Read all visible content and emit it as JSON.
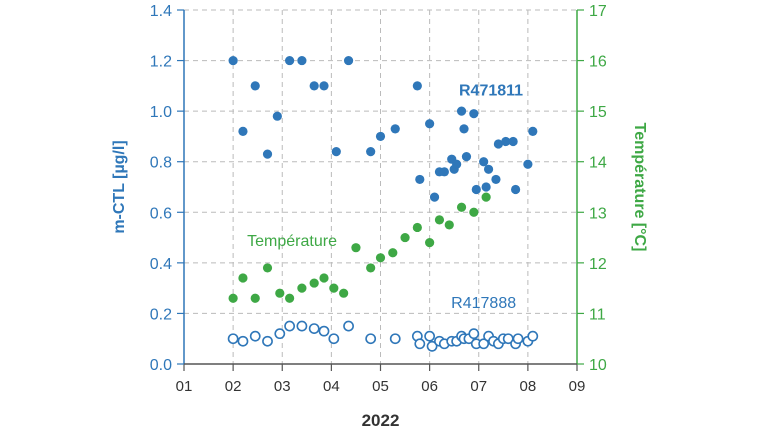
{
  "chart_data": {
    "type": "scatter",
    "xlabel": "2022",
    "ylabel_left": "m-CTL [µg/l]",
    "ylabel_right": "Température [°C]",
    "x_ticks": [
      "01",
      "02",
      "03",
      "04",
      "05",
      "06",
      "07",
      "08",
      "09"
    ],
    "x_range": [
      1,
      9
    ],
    "ylim_left": [
      0.0,
      1.4
    ],
    "ylim_right": [
      10,
      17
    ],
    "y_ticks_left": [
      "0.0",
      "0.2",
      "0.4",
      "0.6",
      "0.8",
      "1.0",
      "1.2",
      "1.4"
    ],
    "y_ticks_right": [
      "10",
      "11",
      "12",
      "13",
      "14",
      "15",
      "16",
      "17"
    ],
    "grid": true,
    "colors": {
      "blue": "#2f77b9",
      "green": "#3ea845",
      "grid": "#bbbbbb",
      "axis": "#555555"
    },
    "series": [
      {
        "name": "R471811",
        "axis": "left",
        "marker": "filled",
        "color": "#2f77b9",
        "points": [
          [
            2.0,
            1.2
          ],
          [
            2.2,
            0.92
          ],
          [
            2.45,
            1.1
          ],
          [
            2.7,
            0.83
          ],
          [
            2.9,
            0.98
          ],
          [
            3.15,
            1.2
          ],
          [
            3.4,
            1.2
          ],
          [
            3.65,
            1.1
          ],
          [
            3.85,
            1.1
          ],
          [
            4.1,
            0.84
          ],
          [
            4.35,
            1.2
          ],
          [
            4.8,
            0.84
          ],
          [
            5.0,
            0.9
          ],
          [
            5.3,
            0.93
          ],
          [
            5.75,
            1.1
          ],
          [
            5.8,
            0.73
          ],
          [
            6.0,
            0.95
          ],
          [
            6.1,
            0.66
          ],
          [
            6.2,
            0.76
          ],
          [
            6.3,
            0.76
          ],
          [
            6.45,
            0.81
          ],
          [
            6.5,
            0.77
          ],
          [
            6.55,
            0.79
          ],
          [
            6.65,
            1.0
          ],
          [
            6.7,
            0.93
          ],
          [
            6.75,
            0.82
          ],
          [
            6.9,
            0.99
          ],
          [
            6.95,
            0.69
          ],
          [
            7.1,
            0.8
          ],
          [
            7.15,
            0.7
          ],
          [
            7.2,
            0.77
          ],
          [
            7.35,
            0.73
          ],
          [
            7.4,
            0.87
          ],
          [
            7.55,
            0.88
          ],
          [
            7.7,
            0.88
          ],
          [
            7.75,
            0.69
          ],
          [
            8.0,
            0.79
          ],
          [
            8.1,
            0.92
          ]
        ]
      },
      {
        "name": "Température",
        "axis": "right",
        "marker": "filled",
        "color": "#3ea845",
        "points": [
          [
            2.0,
            11.3
          ],
          [
            2.2,
            11.7
          ],
          [
            2.45,
            11.3
          ],
          [
            2.7,
            11.9
          ],
          [
            2.95,
            11.4
          ],
          [
            3.15,
            11.3
          ],
          [
            3.4,
            11.5
          ],
          [
            3.65,
            11.6
          ],
          [
            3.85,
            11.7
          ],
          [
            4.05,
            11.5
          ],
          [
            4.25,
            11.4
          ],
          [
            4.5,
            12.3
          ],
          [
            4.8,
            11.9
          ],
          [
            5.0,
            12.1
          ],
          [
            5.25,
            12.2
          ],
          [
            5.5,
            12.5
          ],
          [
            5.75,
            12.7
          ],
          [
            6.0,
            12.4
          ],
          [
            6.2,
            12.85
          ],
          [
            6.4,
            12.75
          ],
          [
            6.65,
            13.1
          ],
          [
            6.9,
            13.0
          ],
          [
            7.15,
            13.3
          ]
        ]
      },
      {
        "name": "R417888",
        "axis": "left",
        "marker": "open",
        "color": "#2f77b9",
        "points": [
          [
            2.0,
            0.1
          ],
          [
            2.2,
            0.09
          ],
          [
            2.45,
            0.11
          ],
          [
            2.7,
            0.09
          ],
          [
            2.95,
            0.12
          ],
          [
            3.15,
            0.15
          ],
          [
            3.4,
            0.15
          ],
          [
            3.65,
            0.14
          ],
          [
            3.85,
            0.13
          ],
          [
            4.05,
            0.1
          ],
          [
            4.35,
            0.15
          ],
          [
            4.8,
            0.1
          ],
          [
            5.3,
            0.1
          ],
          [
            5.75,
            0.11
          ],
          [
            5.8,
            0.08
          ],
          [
            6.0,
            0.11
          ],
          [
            6.05,
            0.07
          ],
          [
            6.2,
            0.09
          ],
          [
            6.3,
            0.08
          ],
          [
            6.45,
            0.09
          ],
          [
            6.55,
            0.09
          ],
          [
            6.65,
            0.11
          ],
          [
            6.7,
            0.1
          ],
          [
            6.8,
            0.1
          ],
          [
            6.9,
            0.12
          ],
          [
            6.95,
            0.08
          ],
          [
            7.1,
            0.08
          ],
          [
            7.2,
            0.11
          ],
          [
            7.3,
            0.09
          ],
          [
            7.4,
            0.08
          ],
          [
            7.5,
            0.1
          ],
          [
            7.6,
            0.1
          ],
          [
            7.75,
            0.08
          ],
          [
            7.8,
            0.1
          ],
          [
            8.0,
            0.09
          ],
          [
            8.1,
            0.11
          ]
        ]
      }
    ],
    "annotations": [
      {
        "text": "R471811",
        "color": "#2f77b9",
        "bold": true,
        "x": 7.25,
        "y_left": 1.085
      },
      {
        "text": "Température",
        "color": "#3ea845",
        "bold": false,
        "x": 3.2,
        "y_left": 0.49
      },
      {
        "text": "R417888",
        "color": "#2f77b9",
        "bold": false,
        "x": 7.1,
        "y_left": 0.245
      }
    ]
  }
}
